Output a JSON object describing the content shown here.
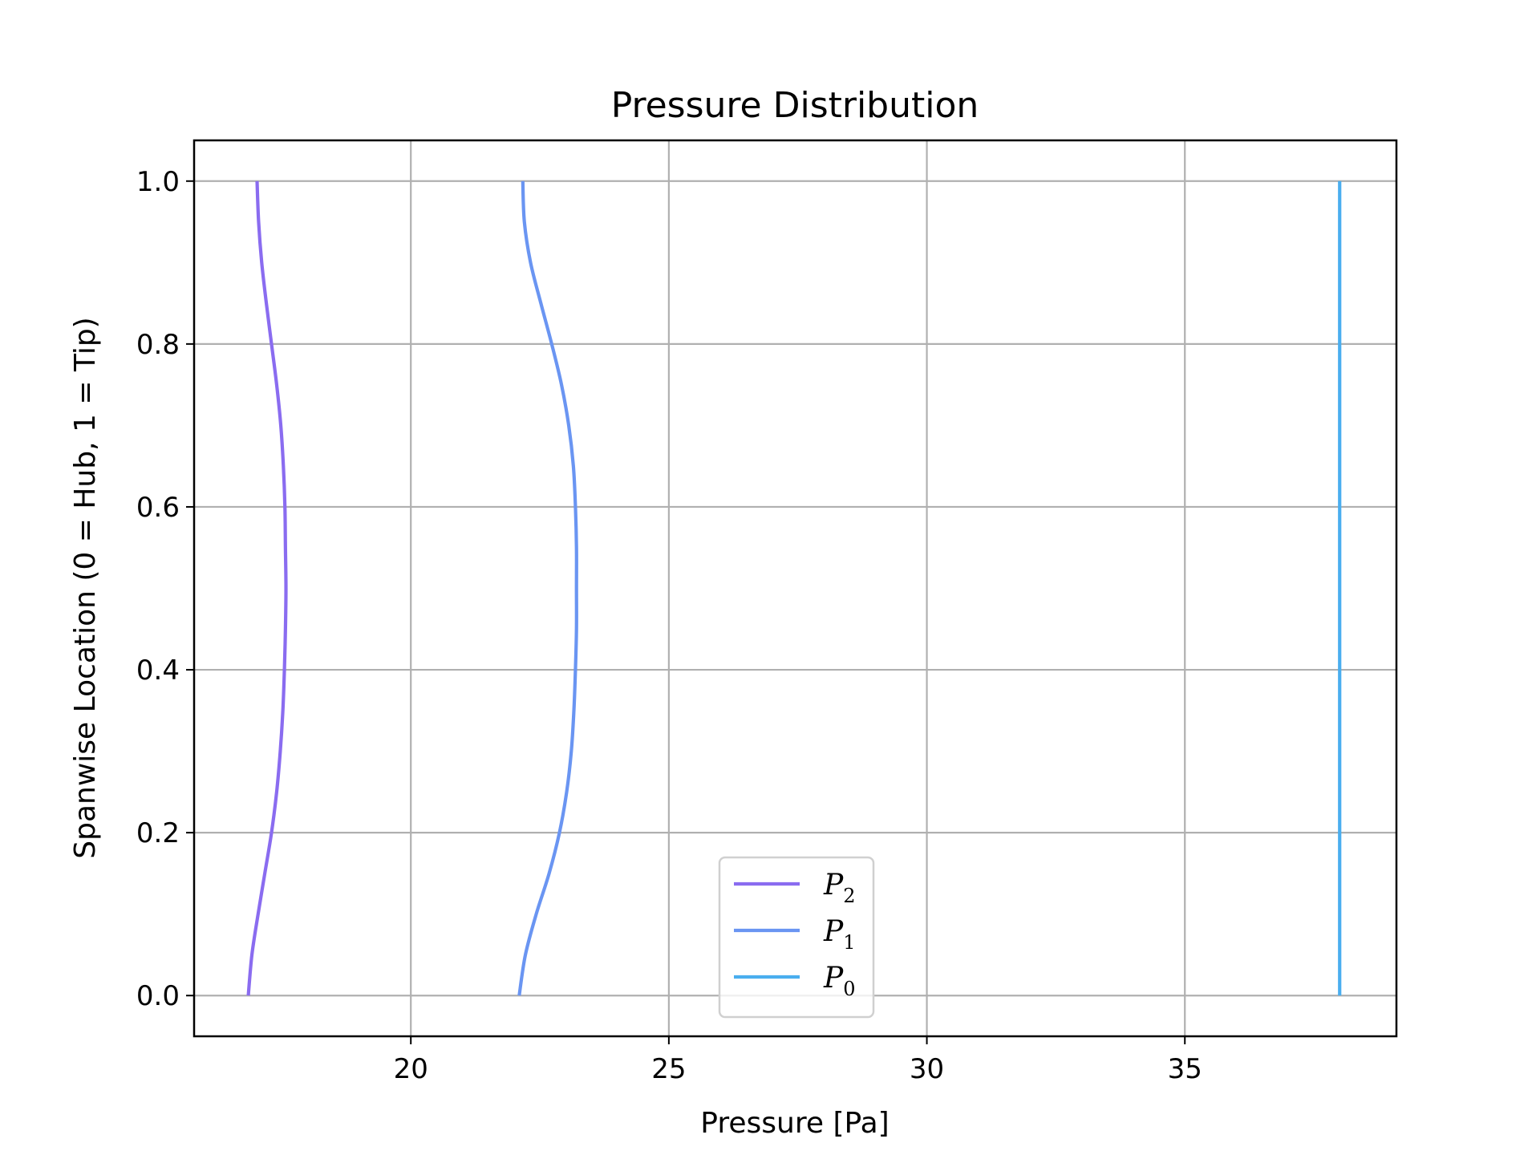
{
  "chart_data": {
    "type": "line",
    "title": "Pressure Distribution",
    "xlabel": "Pressure [Pa]",
    "ylabel": "Spanwise Location (0 = Hub, 1 = Tip)",
    "xlim": [
      15.8,
      39.1
    ],
    "ylim": [
      -0.05,
      1.05
    ],
    "xticks": [
      "20",
      "25",
      "30",
      "35"
    ],
    "xtick_values": [
      20,
      25,
      30,
      35
    ],
    "yticks": [
      "0.0",
      "0.2",
      "0.4",
      "0.6",
      "0.8",
      "1.0"
    ],
    "ytick_values": [
      0.0,
      0.2,
      0.4,
      0.6,
      0.8,
      1.0
    ],
    "grid": true,
    "legend_position": "lower center",
    "y": [
      0.0,
      0.05,
      0.1,
      0.15,
      0.2,
      0.25,
      0.3,
      0.35,
      0.4,
      0.45,
      0.5,
      0.55,
      0.6,
      0.65,
      0.7,
      0.75,
      0.8,
      0.85,
      0.9,
      0.95,
      1.0
    ],
    "series": [
      {
        "name": "P",
        "subscript": "2",
        "color": "#8a6cf0",
        "x": [
          16.85,
          16.92,
          17.04,
          17.17,
          17.3,
          17.4,
          17.47,
          17.52,
          17.55,
          17.57,
          17.58,
          17.57,
          17.56,
          17.53,
          17.48,
          17.4,
          17.3,
          17.2,
          17.11,
          17.05,
          17.02
        ]
      },
      {
        "name": "P",
        "subscript": "1",
        "color": "#6a95f2",
        "x": [
          22.1,
          22.22,
          22.43,
          22.68,
          22.88,
          23.02,
          23.11,
          23.16,
          23.19,
          23.21,
          23.21,
          23.21,
          23.19,
          23.15,
          23.06,
          22.92,
          22.73,
          22.52,
          22.32,
          22.2,
          22.17
        ]
      },
      {
        "name": "P",
        "subscript": "0",
        "color": "#4aaeef",
        "x": [
          38.0,
          38.0,
          38.0,
          38.0,
          38.0,
          38.0,
          38.0,
          38.0,
          38.0,
          38.0,
          38.0,
          38.0,
          38.0,
          38.0,
          38.0,
          38.0,
          38.0,
          38.0,
          38.0,
          38.0,
          38.0
        ]
      }
    ]
  }
}
